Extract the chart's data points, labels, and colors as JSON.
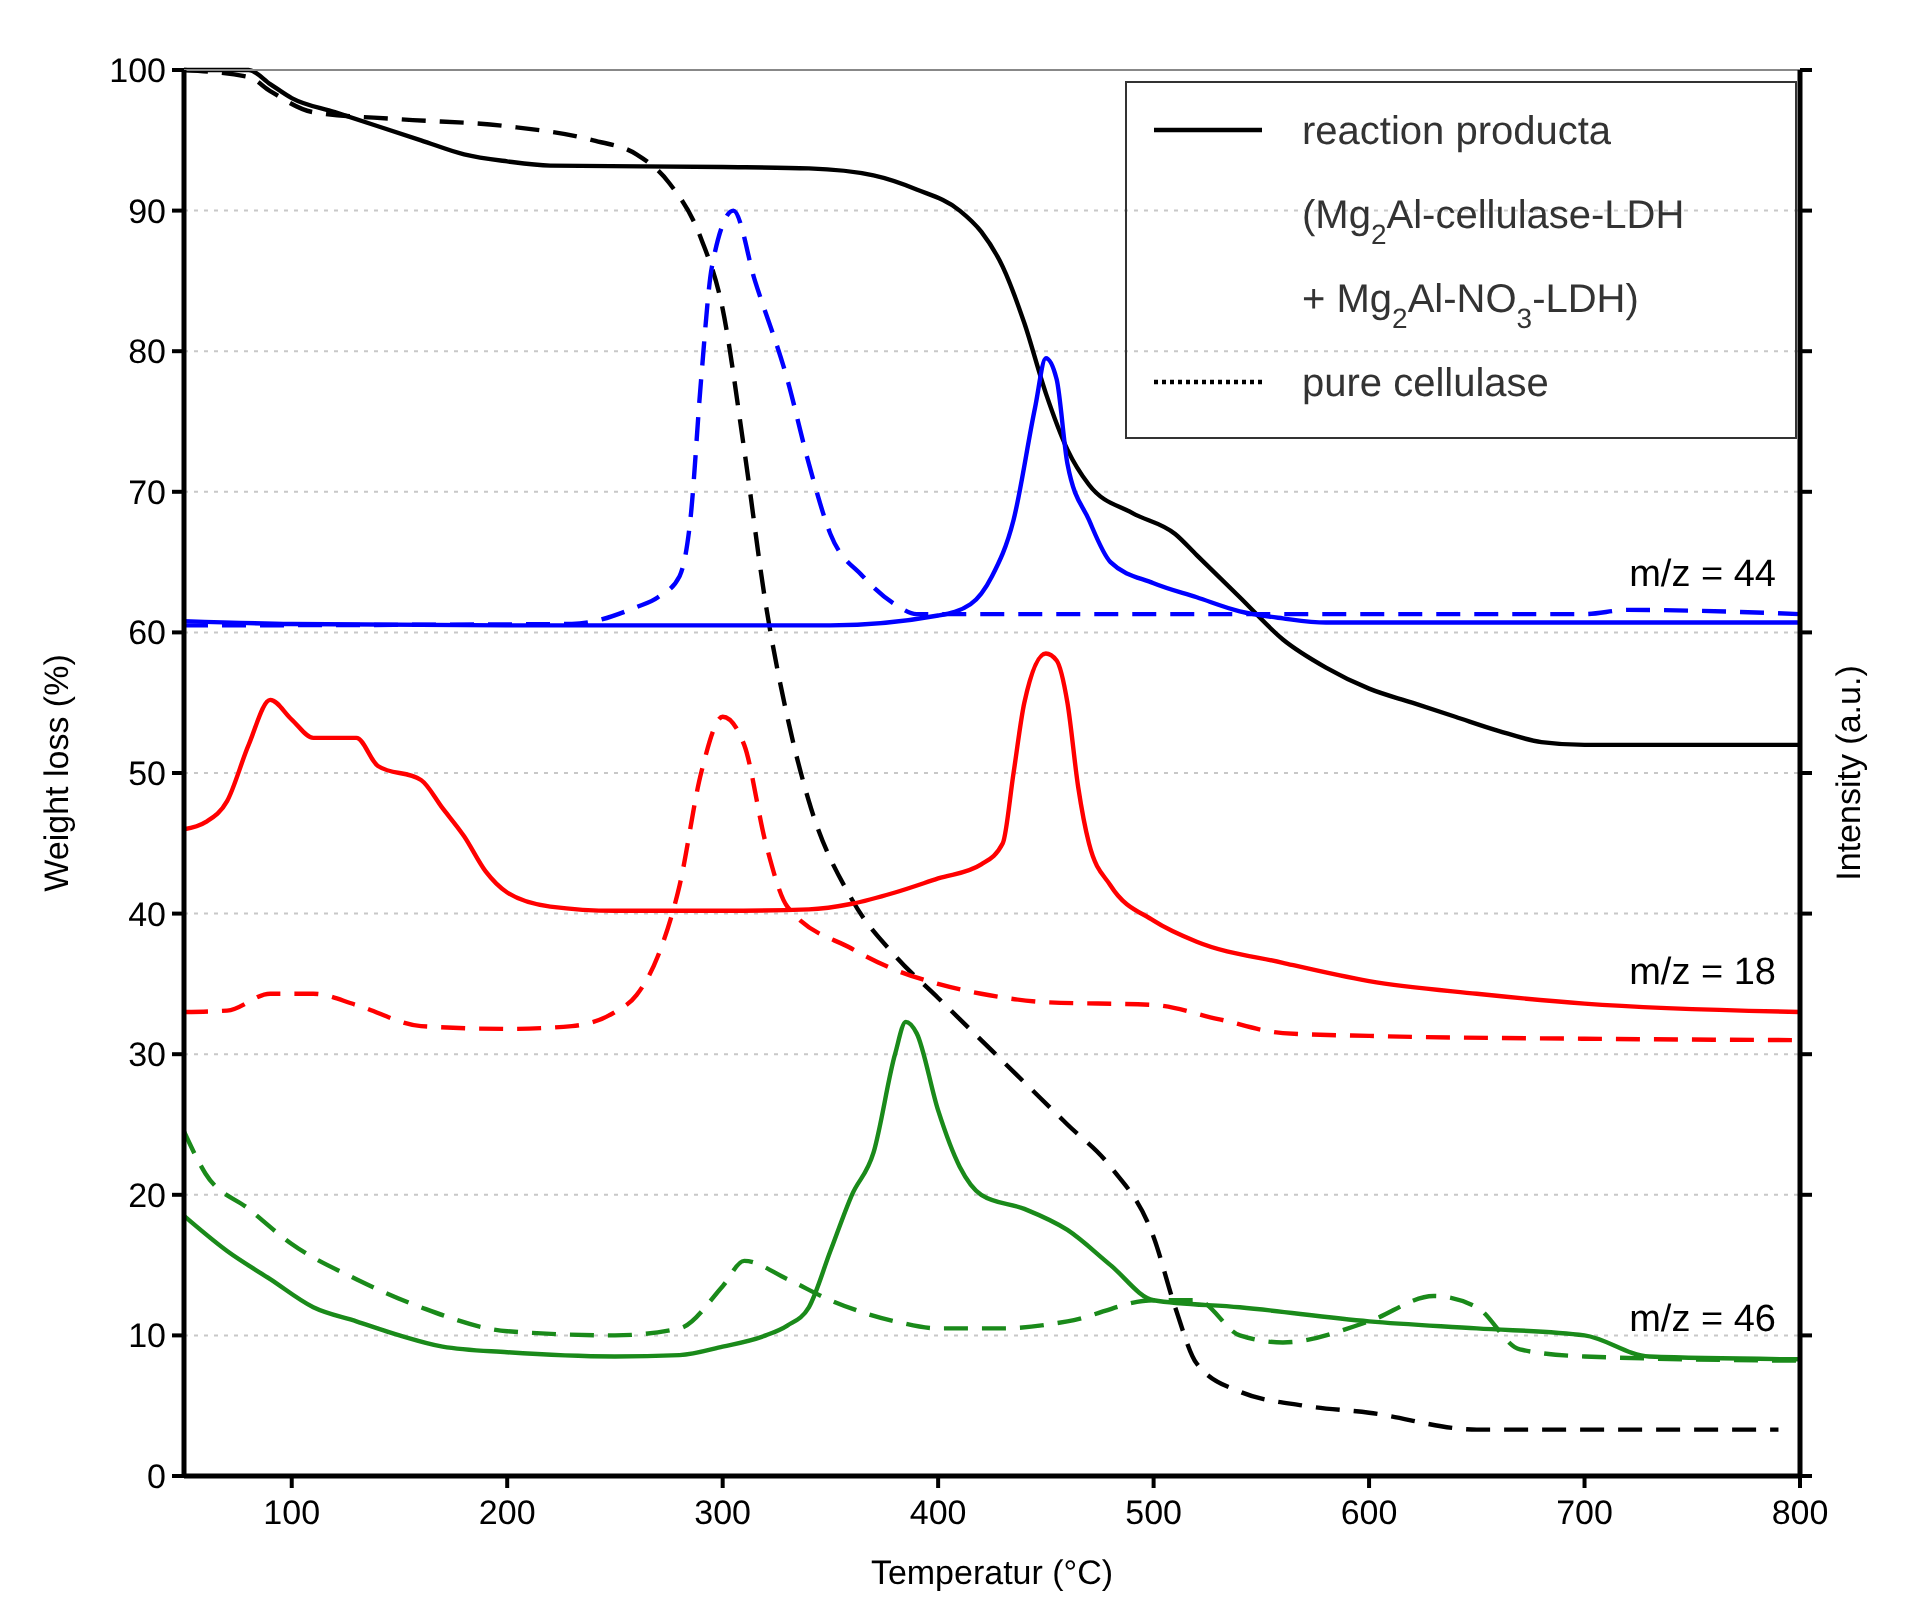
{
  "chart_data": {
    "type": "line",
    "xlabel": "Temperatur (°C)",
    "ylabel": "Weight loss (%)",
    "y2label": "Intensity (a.u.)",
    "xlim": [
      50,
      800
    ],
    "xticks": [
      100,
      200,
      300,
      400,
      500,
      600,
      700,
      800
    ],
    "ylim": [
      0,
      100
    ],
    "yticks": [
      0,
      10,
      20,
      30,
      40,
      50,
      60,
      70,
      80,
      90,
      100
    ],
    "grid": "y",
    "legend": "top right",
    "marker": "none",
    "annotations": [
      "m/z = 44",
      "m/z = 18",
      "m/z = 46"
    ],
    "series": [
      {
        "name": "reaction producta (Mg$_{2}$Al-cellulase-LDH + Mg$_{2}$Al-NO$_{3}$-LDH)",
        "color": "#000000",
        "line_style": "solid",
        "x": [
          50,
          80,
          90,
          100,
          120,
          140,
          160,
          180,
          200,
          220,
          300,
          340,
          370,
          390,
          410,
          420,
          430,
          440,
          450,
          460,
          470,
          490,
          510,
          520,
          540,
          560,
          580,
          600,
          620,
          640,
          660,
          680,
          700,
          750,
          800
        ],
        "values": [
          100,
          100,
          99,
          98,
          97,
          96,
          95,
          94,
          93.5,
          93.2,
          93.1,
          93,
          92.5,
          91.5,
          90,
          88.5,
          86,
          82,
          77,
          73,
          70.5,
          68.5,
          67,
          65.5,
          62.5,
          59.5,
          57.5,
          56,
          55,
          54,
          53,
          52.2,
          52,
          52,
          52
        ]
      },
      {
        "name": "pure cellulase",
        "color": "#000000",
        "line_style": "dashed",
        "x": [
          50,
          80,
          90,
          110,
          150,
          200,
          240,
          260,
          275,
          290,
          300,
          310,
          320,
          330,
          340,
          360,
          380,
          400,
          420,
          440,
          460,
          480,
          500,
          510,
          520,
          540,
          570,
          600,
          650,
          700,
          790
        ],
        "values": [
          100,
          99.5,
          98.5,
          97,
          96.5,
          96,
          95,
          94,
          92,
          88,
          83,
          73,
          62,
          54,
          48,
          41,
          37,
          34,
          31,
          28,
          25,
          22,
          17,
          12,
          8,
          6,
          5,
          4.5,
          3.3,
          3.3,
          3.3
        ]
      },
      {
        "color": "#0000ff",
        "line_style": "solid",
        "x": [
          50,
          100,
          200,
          350,
          400,
          415,
          425,
          435,
          445,
          450,
          455,
          460,
          470,
          480,
          500,
          520,
          540,
          560,
          580,
          800
        ],
        "values": [
          60.8,
          60.6,
          60.5,
          60.5,
          61.2,
          62,
          64,
          68,
          76,
          79.5,
          78,
          72,
          68,
          65,
          63.5,
          62.5,
          61.5,
          61,
          60.7,
          60.7
        ]
      },
      {
        "color": "#0000ff",
        "line_style": "dashed",
        "x": [
          50,
          230,
          260,
          270,
          280,
          285,
          290,
          295,
          305,
          315,
          330,
          340,
          350,
          365,
          380,
          390,
          420,
          500,
          700,
          720,
          800
        ],
        "values": [
          60.5,
          60.6,
          61.8,
          62.5,
          64,
          68,
          78,
          86,
          90,
          85,
          78,
          72,
          67,
          64,
          62,
          61.3,
          61.3,
          61.3,
          61.3,
          61.6,
          61.3
        ]
      },
      {
        "color": "#ff0000",
        "line_style": "solid",
        "x": [
          50,
          60,
          70,
          80,
          90,
          100,
          110,
          130,
          140,
          160,
          170,
          180,
          190,
          200,
          220,
          250,
          300,
          340,
          360,
          380,
          400,
          420,
          430,
          435,
          440,
          450,
          455,
          460,
          465,
          470,
          480,
          500,
          520,
          560,
          600,
          650,
          700,
          800
        ],
        "values": [
          46,
          46.5,
          48,
          52,
          55.2,
          53.8,
          52.5,
          52.5,
          50.5,
          49.5,
          47.5,
          45.5,
          43,
          41.5,
          40.5,
          40.2,
          40.2,
          40.3,
          40.7,
          41.5,
          42.5,
          43.5,
          45,
          50,
          55,
          58.5,
          58,
          55,
          49,
          45,
          42,
          39.5,
          38,
          36.5,
          35.2,
          34.3,
          33.6,
          33
        ]
      },
      {
        "color": "#ff0000",
        "line_style": "dashed",
        "x": [
          50,
          70,
          90,
          110,
          130,
          160,
          200,
          230,
          250,
          260,
          270,
          280,
          290,
          300,
          310,
          320,
          330,
          360,
          380,
          400,
          420,
          450,
          500,
          530,
          560,
          600,
          700,
          800
        ],
        "values": [
          33,
          33.1,
          34.3,
          34.3,
          33.5,
          32,
          31.8,
          32,
          33,
          34.2,
          37,
          42,
          50,
          54,
          52,
          45,
          40.5,
          37.5,
          36,
          35,
          34.3,
          33.7,
          33.5,
          32.5,
          31.5,
          31.3,
          31.1,
          31
        ]
      },
      {
        "color": "#1a8a1a",
        "line_style": "solid",
        "x": [
          50,
          70,
          90,
          110,
          130,
          150,
          170,
          200,
          250,
          280,
          300,
          320,
          330,
          340,
          350,
          360,
          370,
          380,
          385,
          390,
          400,
          410,
          420,
          440,
          460,
          480,
          500,
          540,
          600,
          650,
          700,
          730,
          800
        ],
        "values": [
          18.5,
          16,
          14,
          12,
          11,
          10,
          9.2,
          8.8,
          8.5,
          8.6,
          9.2,
          10,
          10.7,
          12,
          16,
          20,
          23,
          30,
          32.3,
          31.5,
          26,
          22,
          20,
          19,
          17.5,
          15,
          12.5,
          12,
          11,
          10.5,
          10,
          8.5,
          8.3
        ]
      },
      {
        "color": "#1a8a1a",
        "line_style": "dashed",
        "x": [
          50,
          60,
          80,
          100,
          130,
          160,
          200,
          250,
          280,
          300,
          310,
          330,
          350,
          380,
          400,
          430,
          460,
          500,
          520,
          540,
          560,
          600,
          630,
          650,
          670,
          700,
          800
        ],
        "values": [
          24.5,
          21.5,
          19,
          16.5,
          14,
          12,
          10.3,
          10,
          10.5,
          13.5,
          15.3,
          14,
          12.5,
          11,
          10.5,
          10.5,
          11,
          12.5,
          12.5,
          10,
          9.5,
          11,
          12.8,
          12,
          9,
          8.5,
          8.2
        ]
      }
    ]
  }
}
